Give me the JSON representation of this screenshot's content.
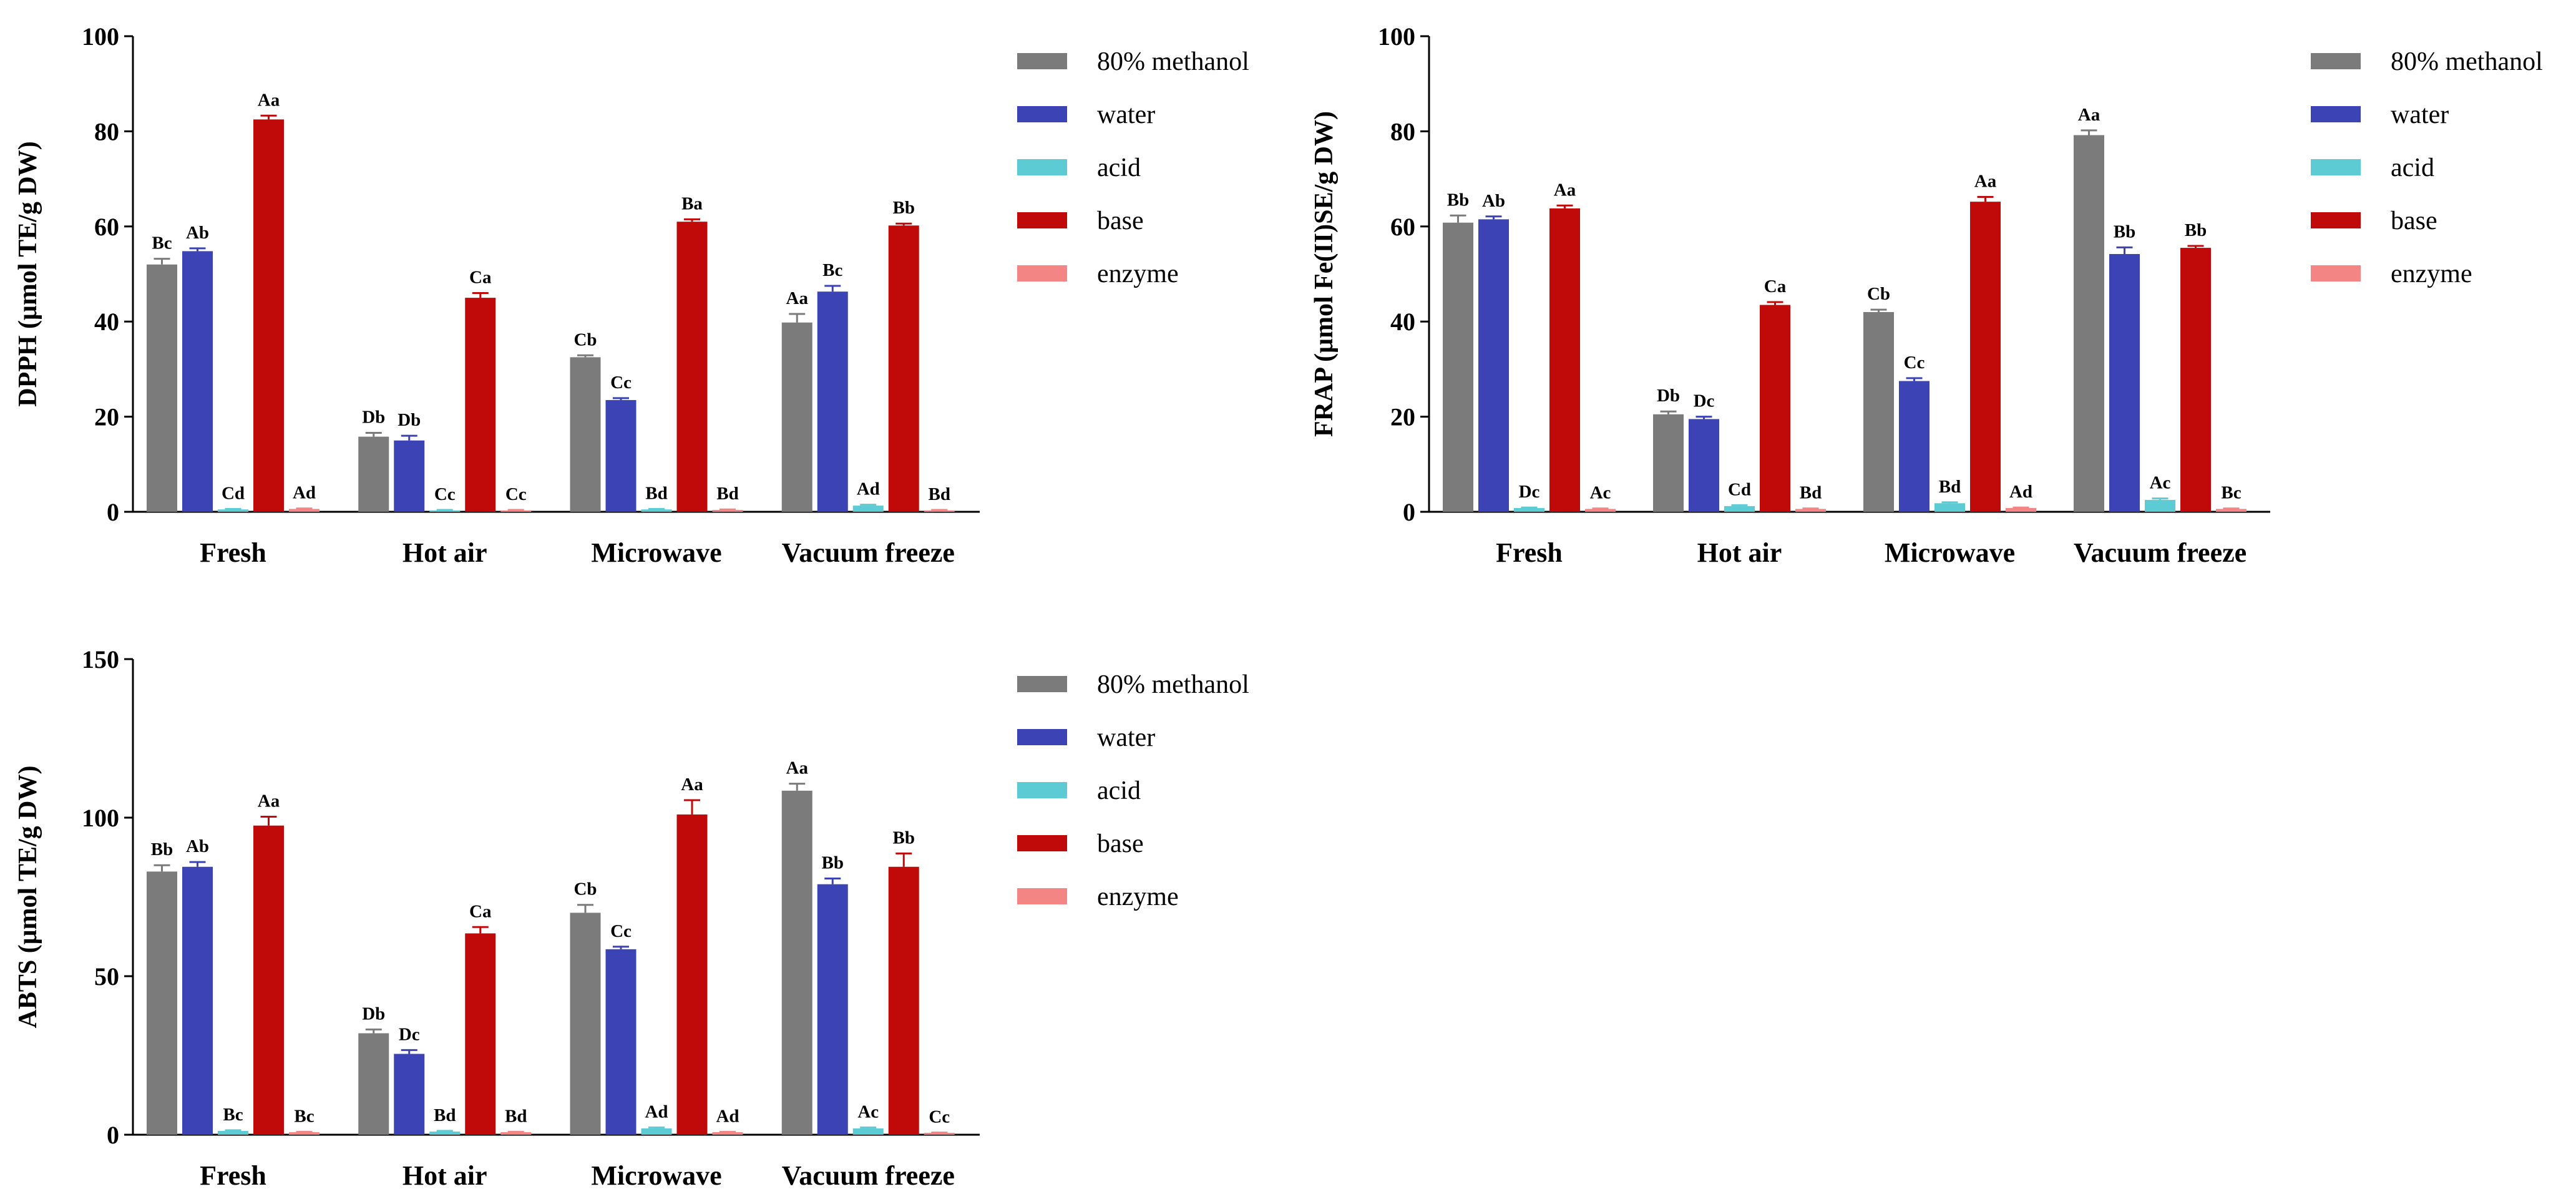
{
  "colors": {
    "80% methanol": "#7b7b7b",
    "water": "#3b43b5",
    "acid": "#5ccbd4",
    "base": "#c00a0a",
    "enzyme": "#f38585",
    "axis": "#000000"
  },
  "chart_data": [
    {
      "type": "bar",
      "title": "",
      "ylabel": "DPPH (μmol TE/g DW)",
      "xlabel": "",
      "ylim": [
        0,
        100
      ],
      "yticks": [
        0,
        20,
        40,
        60,
        80,
        100
      ],
      "legend_position": "right",
      "categories": [
        "Fresh",
        "Hot air",
        "Microwave",
        "Vacuum freeze"
      ],
      "series": [
        {
          "name": "80% methanol",
          "values": [
            52,
            15.8,
            32.5,
            39.8
          ],
          "errors": [
            1.2,
            0.8,
            0.4,
            1.8
          ],
          "labels": [
            "Bc",
            "Db",
            "Cb",
            "Aa"
          ]
        },
        {
          "name": "water",
          "values": [
            54.8,
            15,
            23.5,
            46.3
          ],
          "errors": [
            0.6,
            1.0,
            0.4,
            1.2
          ],
          "labels": [
            "Ab",
            "Db",
            "Cc",
            "Bc"
          ]
        },
        {
          "name": "acid",
          "values": [
            0.5,
            0.3,
            0.5,
            1.3
          ],
          "errors": [
            0.1,
            0.1,
            0.1,
            0.2
          ],
          "labels": [
            "Cd",
            "Cc",
            "Bd",
            "Ad"
          ]
        },
        {
          "name": "base",
          "values": [
            82.5,
            45,
            61,
            60.2
          ],
          "errors": [
            0.8,
            1.0,
            0.5,
            0.4
          ],
          "labels": [
            "Aa",
            "Ca",
            "Ba",
            "Bb"
          ]
        },
        {
          "name": "enzyme",
          "values": [
            0.6,
            0.3,
            0.4,
            0.3
          ],
          "errors": [
            0.1,
            0.1,
            0.1,
            0.1
          ],
          "labels": [
            "Ad",
            "Cc",
            "Bd",
            "Bd"
          ]
        }
      ]
    },
    {
      "type": "bar",
      "title": "",
      "ylabel": "FRAP (μmol Fe(II)SE/g DW)",
      "xlabel": "",
      "ylim": [
        0,
        100
      ],
      "yticks": [
        0,
        20,
        40,
        60,
        80,
        100
      ],
      "legend_position": "right",
      "categories": [
        "Fresh",
        "Hot air",
        "Microwave",
        "Vacuum freeze"
      ],
      "series": [
        {
          "name": "80% methanol",
          "values": [
            60.8,
            20.5,
            42,
            79.2
          ],
          "errors": [
            1.5,
            0.6,
            0.5,
            1.0
          ],
          "labels": [
            "Bb",
            "Db",
            "Cb",
            "Aa"
          ]
        },
        {
          "name": "water",
          "values": [
            61.5,
            19.5,
            27.5,
            54.2
          ],
          "errors": [
            0.6,
            0.5,
            0.6,
            1.4
          ],
          "labels": [
            "Ab",
            "Dc",
            "Cc",
            "Bb"
          ]
        },
        {
          "name": "acid",
          "values": [
            0.8,
            1.2,
            1.8,
            2.5
          ],
          "errors": [
            0.1,
            0.2,
            0.2,
            0.3
          ],
          "labels": [
            "Dc",
            "Cd",
            "Bd",
            "Ac"
          ]
        },
        {
          "name": "base",
          "values": [
            63.8,
            43.5,
            65.2,
            55.5
          ],
          "errors": [
            0.6,
            0.6,
            1.0,
            0.4
          ],
          "labels": [
            "Aa",
            "Ca",
            "Aa",
            "Bb"
          ]
        },
        {
          "name": "enzyme",
          "values": [
            0.6,
            0.6,
            0.8,
            0.6
          ],
          "errors": [
            0.1,
            0.1,
            0.1,
            0.1
          ],
          "labels": [
            "Ac",
            "Bd",
            "Ad",
            "Bc"
          ]
        }
      ]
    },
    {
      "type": "bar",
      "title": "",
      "ylabel": "ABTS (μmol TE/g DW)",
      "xlabel": "",
      "ylim": [
        0,
        150
      ],
      "yticks": [
        0,
        50,
        100,
        150
      ],
      "legend_position": "right",
      "categories": [
        "Fresh",
        "Hot air",
        "Microwave",
        "Vacuum freeze"
      ],
      "series": [
        {
          "name": "80% methanol",
          "values": [
            83,
            32,
            70,
            108.5
          ],
          "errors": [
            2.0,
            1.2,
            2.5,
            2.2
          ],
          "labels": [
            "Bb",
            "Db",
            "Cb",
            "Aa"
          ]
        },
        {
          "name": "water",
          "values": [
            84.5,
            25.5,
            58.5,
            79
          ],
          "errors": [
            1.5,
            1.2,
            0.8,
            1.8
          ],
          "labels": [
            "Ab",
            "Dc",
            "Cc",
            "Bb"
          ]
        },
        {
          "name": "acid",
          "values": [
            1.2,
            1,
            2,
            2
          ],
          "errors": [
            0.2,
            0.2,
            0.3,
            0.3
          ],
          "labels": [
            "Bc",
            "Bd",
            "Ad",
            "Ac"
          ]
        },
        {
          "name": "base",
          "values": [
            97.5,
            63.5,
            101,
            84.5
          ],
          "errors": [
            2.8,
            2.0,
            4.5,
            4.2
          ],
          "labels": [
            "Aa",
            "Ca",
            "Aa",
            "Bb"
          ]
        },
        {
          "name": "enzyme",
          "values": [
            0.8,
            0.8,
            0.8,
            0.6
          ],
          "errors": [
            0.1,
            0.1,
            0.1,
            0.1
          ],
          "labels": [
            "Bc",
            "Bd",
            "Ad",
            "Cc"
          ]
        }
      ]
    }
  ]
}
